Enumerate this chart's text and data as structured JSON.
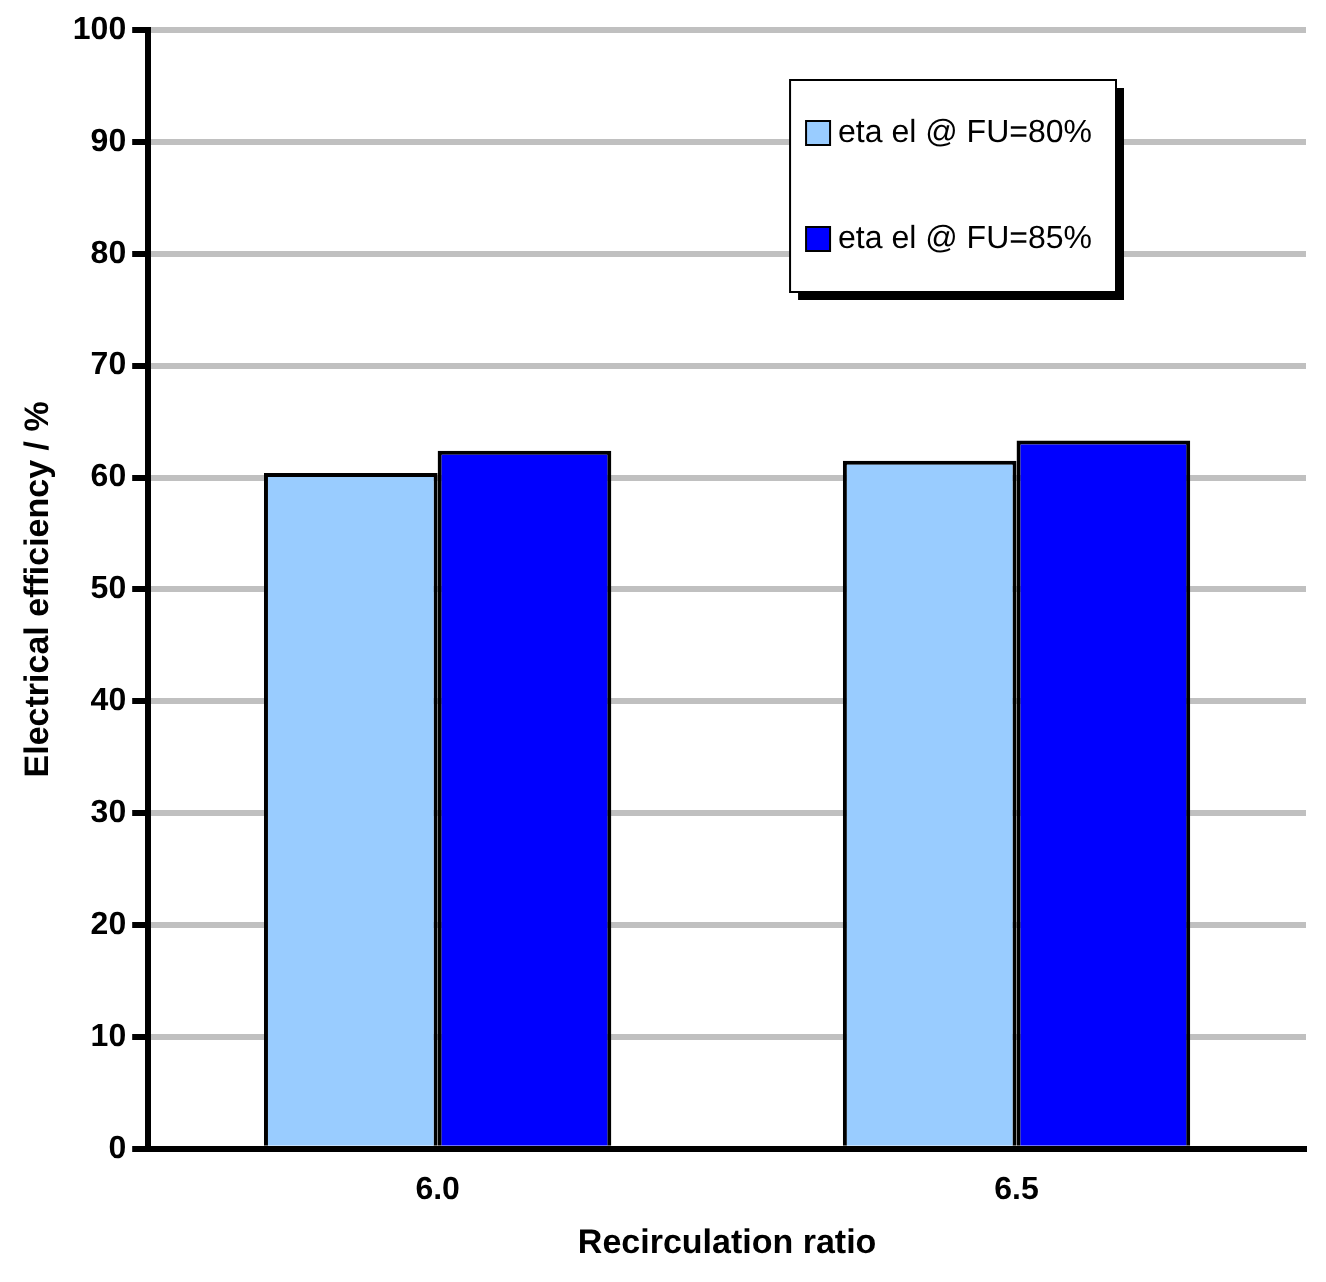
{
  "chart_data": {
    "type": "bar",
    "xlabel": "Recirculation ratio",
    "ylabel": "Electrical efficiency / %",
    "categories": [
      "6.0",
      "6.5"
    ],
    "series": [
      {
        "name": "eta el @ FU=80%",
        "color": "#99ccff",
        "values": [
          60.4,
          61.5
        ]
      },
      {
        "name": "eta el @ FU=85%",
        "color": "#0000ff",
        "values": [
          62.4,
          63.3
        ]
      }
    ],
    "ylim": [
      0,
      100
    ],
    "yticks": [
      0,
      10,
      20,
      30,
      40,
      50,
      60,
      70,
      80,
      90,
      100
    ],
    "grid": "y",
    "legend": "top right"
  }
}
